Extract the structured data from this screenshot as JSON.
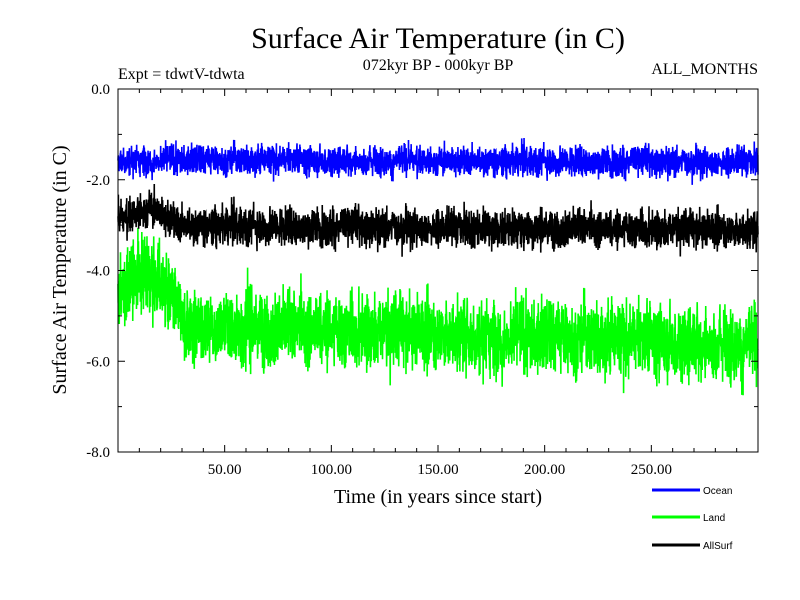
{
  "chart_data": {
    "type": "line",
    "title": "Surface Air Temperature (in C)",
    "subtitle": "072kyr BP - 000kyr BP",
    "experiment_label": "Expt = tdwtV-tdwta",
    "period_label": "ALL_MONTHS",
    "xlabel": "Time (in years since start)",
    "ylabel": "Surface Air Temperature (in C)",
    "xlim": [
      0,
      300
    ],
    "ylim": [
      -8.0,
      0.0
    ],
    "x_ticks": [
      50,
      100,
      150,
      200,
      250
    ],
    "x_tick_labels": [
      "50.00",
      "100.00",
      "150.00",
      "200.00",
      "250.00"
    ],
    "y_ticks": [
      0,
      -2,
      -4,
      -6,
      -8
    ],
    "y_tick_labels": [
      "0.0",
      "-2.0",
      "-4.0",
      "-6.0",
      "-8.0"
    ],
    "legend_position": "bottom-right, below plot",
    "series": [
      {
        "name": "Ocean",
        "color": "#0000ff",
        "mean": -1.55,
        "noise": 0.22,
        "samples_per_year": 12,
        "segments": [
          {
            "x": 0,
            "mean": -1.55
          },
          {
            "x": 300,
            "mean": -1.6
          }
        ]
      },
      {
        "name": "Land",
        "color": "#00ff00",
        "mean": -5.4,
        "noise": 0.55,
        "samples_per_year": 12,
        "segments": [
          {
            "x": 0,
            "mean": -4.6
          },
          {
            "x": 10,
            "mean": -4.0
          },
          {
            "x": 20,
            "mean": -4.2
          },
          {
            "x": 30,
            "mean": -5.2
          },
          {
            "x": 300,
            "mean": -5.6
          }
        ]
      },
      {
        "name": "AllSurf",
        "color": "#000000",
        "mean": -3.05,
        "noise": 0.28,
        "samples_per_year": 12,
        "segments": [
          {
            "x": 0,
            "mean": -2.9
          },
          {
            "x": 15,
            "mean": -2.6
          },
          {
            "x": 30,
            "mean": -3.0
          },
          {
            "x": 300,
            "mean": -3.1
          }
        ]
      }
    ]
  }
}
